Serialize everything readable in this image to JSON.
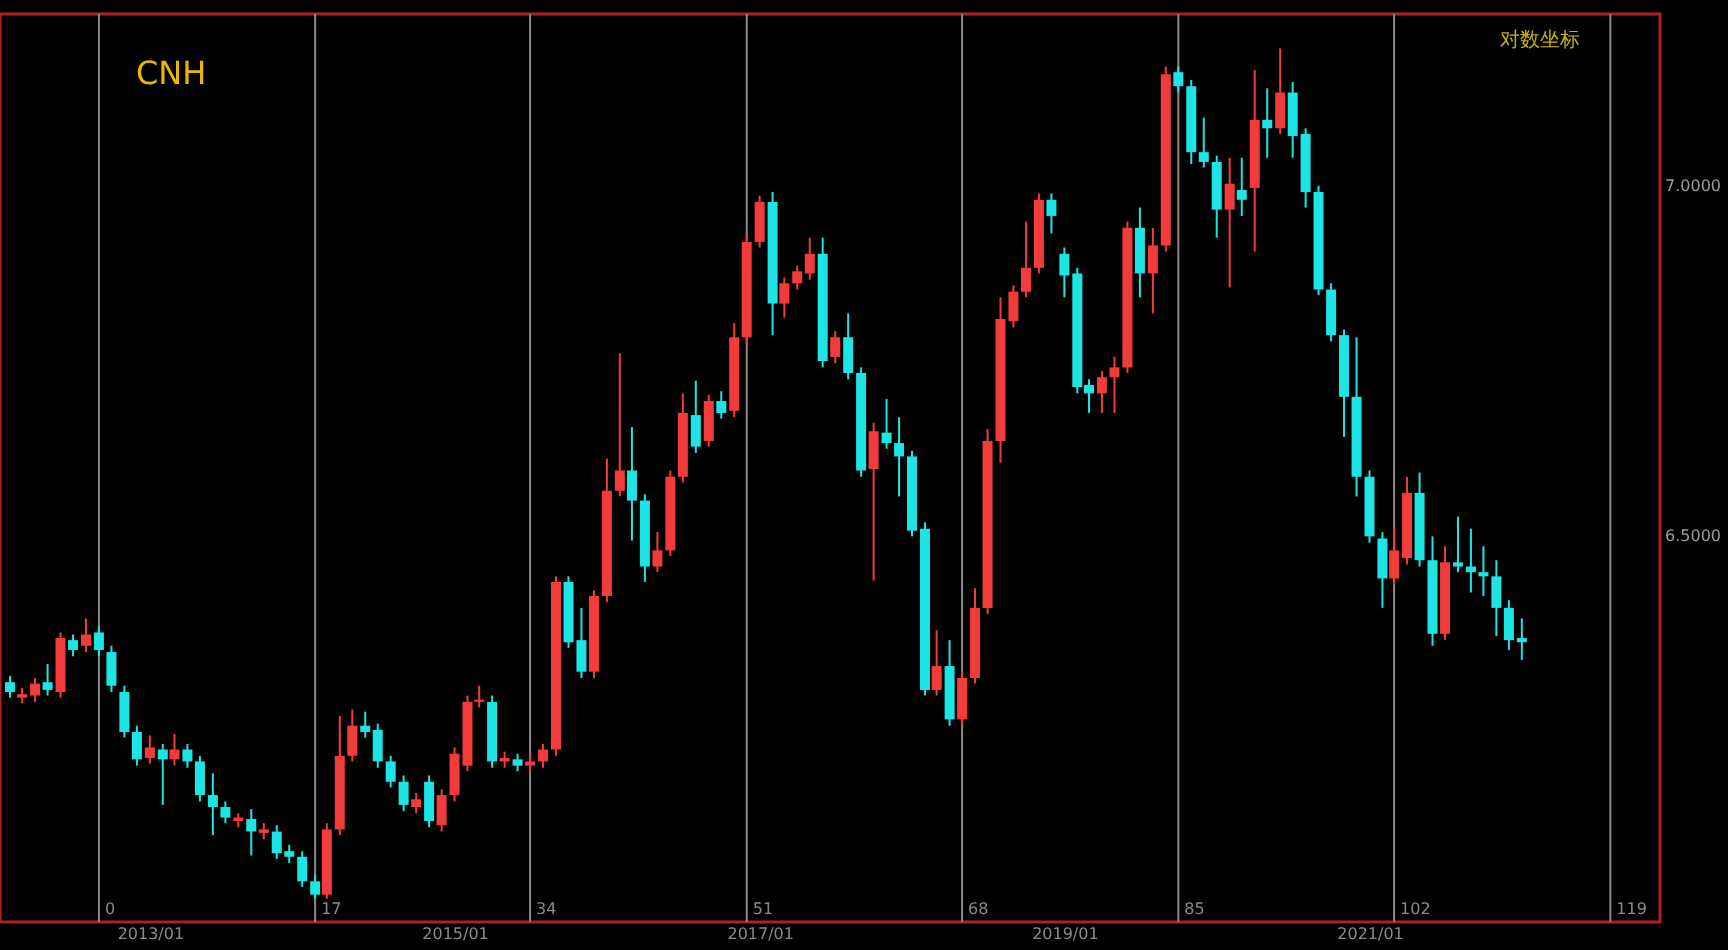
{
  "chart_data": {
    "type": "candlestick",
    "title": "CNH",
    "annotations": [
      "对数坐标"
    ],
    "x": [
      "2012-02",
      "2012-03",
      "2012-04",
      "2012-05",
      "2012-06",
      "2012-07",
      "2012-08",
      "2012-09",
      "2012-10",
      "2012-11",
      "2012-12",
      "2013-01",
      "2013-02",
      "2013-03",
      "2013-04",
      "2013-05",
      "2013-06",
      "2013-07",
      "2013-08",
      "2013-09",
      "2013-10",
      "2013-11",
      "2013-12",
      "2014-01",
      "2014-02",
      "2014-03",
      "2014-04",
      "2014-05",
      "2014-06",
      "2014-07",
      "2014-08",
      "2014-09",
      "2014-10",
      "2014-11",
      "2014-12",
      "2015-01",
      "2015-02",
      "2015-03",
      "2015-04",
      "2015-05",
      "2015-06",
      "2015-07",
      "2015-08",
      "2015-09",
      "2015-10",
      "2015-11",
      "2015-12",
      "2016-01",
      "2016-02",
      "2016-03",
      "2016-04",
      "2016-05",
      "2016-06",
      "2016-07",
      "2016-08",
      "2016-09",
      "2016-10",
      "2016-11",
      "2016-12",
      "2017-01",
      "2017-02",
      "2017-03",
      "2017-04",
      "2017-05",
      "2017-06",
      "2017-07",
      "2017-08",
      "2017-09",
      "2017-10",
      "2017-11",
      "2017-12",
      "2018-01",
      "2018-02",
      "2018-03",
      "2018-04",
      "2018-05",
      "2018-06",
      "2018-07",
      "2018-08",
      "2018-09",
      "2018-10",
      "2018-11",
      "2018-12",
      "2019-01",
      "2019-02",
      "2019-03",
      "2019-04",
      "2019-05",
      "2019-06",
      "2019-07",
      "2019-08",
      "2019-09",
      "2019-10",
      "2019-11",
      "2019-12",
      "2020-01",
      "2020-02",
      "2020-03",
      "2020-04",
      "2020-05",
      "2020-06",
      "2020-07",
      "2020-08",
      "2020-09",
      "2020-10",
      "2020-11",
      "2020-12",
      "2021-01",
      "2021-02",
      "2021-03",
      "2021-04",
      "2021-05",
      "2021-06",
      "2021-07",
      "2021-08",
      "2021-09",
      "2021-10",
      "2021-11",
      "2021-12",
      "2022-01"
    ],
    "ohlc": [
      [
        6.292,
        6.301,
        6.27,
        6.278
      ],
      [
        6.27,
        6.284,
        6.262,
        6.275
      ],
      [
        6.273,
        6.298,
        6.264,
        6.29
      ],
      [
        6.292,
        6.318,
        6.273,
        6.281
      ],
      [
        6.278,
        6.363,
        6.27,
        6.355
      ],
      [
        6.352,
        6.36,
        6.329,
        6.338
      ],
      [
        6.344,
        6.383,
        6.335,
        6.36
      ],
      [
        6.363,
        6.372,
        6.329,
        6.338
      ],
      [
        6.335,
        6.344,
        6.278,
        6.287
      ],
      [
        6.278,
        6.287,
        6.213,
        6.221
      ],
      [
        6.221,
        6.23,
        6.173,
        6.182
      ],
      [
        6.184,
        6.216,
        6.176,
        6.199
      ],
      [
        6.196,
        6.204,
        6.117,
        6.182
      ],
      [
        6.182,
        6.218,
        6.173,
        6.196
      ],
      [
        6.196,
        6.204,
        6.17,
        6.179
      ],
      [
        6.179,
        6.187,
        6.122,
        6.131
      ],
      [
        6.131,
        6.162,
        6.074,
        6.114
      ],
      [
        6.114,
        6.122,
        6.091,
        6.099
      ],
      [
        6.094,
        6.105,
        6.085,
        6.099
      ],
      [
        6.097,
        6.111,
        6.045,
        6.079
      ],
      [
        6.077,
        6.091,
        6.068,
        6.082
      ],
      [
        6.079,
        6.088,
        6.04,
        6.048
      ],
      [
        6.051,
        6.06,
        6.034,
        6.043
      ],
      [
        6.043,
        6.051,
        6.0,
        6.008
      ],
      [
        6.008,
        6.017,
        5.983,
        5.989
      ],
      [
        5.989,
        6.091,
        5.983,
        6.082
      ],
      [
        6.082,
        6.244,
        6.074,
        6.187
      ],
      [
        6.187,
        6.253,
        6.179,
        6.23
      ],
      [
        6.23,
        6.25,
        6.213,
        6.221
      ],
      [
        6.224,
        6.233,
        6.17,
        6.179
      ],
      [
        6.179,
        6.187,
        6.142,
        6.15
      ],
      [
        6.15,
        6.159,
        6.108,
        6.117
      ],
      [
        6.114,
        6.134,
        6.105,
        6.125
      ],
      [
        6.15,
        6.159,
        6.085,
        6.094
      ],
      [
        6.088,
        6.139,
        6.079,
        6.131
      ],
      [
        6.131,
        6.199,
        6.122,
        6.19
      ],
      [
        6.173,
        6.273,
        6.165,
        6.264
      ],
      [
        6.264,
        6.287,
        6.256,
        6.267
      ],
      [
        6.264,
        6.273,
        6.17,
        6.179
      ],
      [
        6.179,
        6.193,
        6.17,
        6.184
      ],
      [
        6.182,
        6.19,
        6.165,
        6.173
      ],
      [
        6.173,
        6.187,
        6.165,
        6.179
      ],
      [
        6.179,
        6.204,
        6.17,
        6.196
      ],
      [
        6.196,
        6.443,
        6.187,
        6.435
      ],
      [
        6.435,
        6.443,
        6.341,
        6.349
      ],
      [
        6.352,
        6.398,
        6.298,
        6.307
      ],
      [
        6.307,
        6.423,
        6.298,
        6.415
      ],
      [
        6.415,
        6.611,
        6.406,
        6.565
      ],
      [
        6.565,
        6.761,
        6.557,
        6.594
      ],
      [
        6.594,
        6.656,
        6.494,
        6.551
      ],
      [
        6.551,
        6.56,
        6.435,
        6.457
      ],
      [
        6.457,
        6.506,
        6.449,
        6.48
      ],
      [
        6.48,
        6.594,
        6.472,
        6.585
      ],
      [
        6.585,
        6.704,
        6.577,
        6.676
      ],
      [
        6.673,
        6.722,
        6.619,
        6.628
      ],
      [
        6.636,
        6.702,
        6.628,
        6.693
      ],
      [
        6.693,
        6.707,
        6.668,
        6.676
      ],
      [
        6.679,
        6.804,
        6.67,
        6.784
      ],
      [
        6.784,
        6.929,
        6.776,
        6.92
      ],
      [
        6.92,
        6.986,
        6.912,
        6.977
      ],
      [
        6.977,
        6.991,
        6.787,
        6.832
      ],
      [
        6.832,
        6.869,
        6.812,
        6.861
      ],
      [
        6.861,
        6.886,
        6.852,
        6.878
      ],
      [
        6.875,
        6.926,
        6.866,
        6.903
      ],
      [
        6.903,
        6.926,
        6.741,
        6.75
      ],
      [
        6.756,
        6.793,
        6.747,
        6.784
      ],
      [
        6.784,
        6.818,
        6.724,
        6.733
      ],
      [
        6.733,
        6.741,
        6.585,
        6.594
      ],
      [
        6.596,
        6.662,
        6.437,
        6.65
      ],
      [
        6.648,
        6.696,
        6.625,
        6.633
      ],
      [
        6.633,
        6.67,
        6.557,
        6.614
      ],
      [
        6.614,
        6.622,
        6.5,
        6.508
      ],
      [
        6.511,
        6.52,
        6.273,
        6.281
      ],
      [
        6.281,
        6.366,
        6.273,
        6.315
      ],
      [
        6.315,
        6.352,
        6.23,
        6.239
      ],
      [
        6.239,
        6.307,
        6.23,
        6.298
      ],
      [
        6.298,
        6.426,
        6.29,
        6.398
      ],
      [
        6.398,
        6.653,
        6.389,
        6.636
      ],
      [
        6.636,
        6.841,
        6.605,
        6.81
      ],
      [
        6.807,
        6.858,
        6.798,
        6.849
      ],
      [
        6.849,
        6.949,
        6.841,
        6.883
      ],
      [
        6.883,
        6.989,
        6.875,
        6.98
      ],
      [
        6.98,
        6.989,
        6.932,
        6.957
      ],
      [
        6.903,
        6.912,
        6.841,
        6.872
      ],
      [
        6.875,
        6.883,
        6.704,
        6.713
      ],
      [
        6.716,
        6.724,
        6.676,
        6.704
      ],
      [
        6.704,
        6.736,
        6.676,
        6.727
      ],
      [
        6.727,
        6.756,
        6.676,
        6.741
      ],
      [
        6.741,
        6.949,
        6.733,
        6.94
      ],
      [
        6.94,
        6.969,
        6.841,
        6.875
      ],
      [
        6.875,
        6.94,
        6.818,
        6.915
      ],
      [
        6.915,
        7.17,
        6.906,
        7.159
      ],
      [
        7.162,
        7.17,
        7.133,
        7.142
      ],
      [
        7.142,
        7.151,
        7.031,
        7.048
      ],
      [
        7.048,
        7.097,
        7.026,
        7.034
      ],
      [
        7.034,
        7.043,
        6.926,
        6.966
      ],
      [
        6.966,
        7.04,
        6.855,
        7.003
      ],
      [
        6.994,
        7.04,
        6.957,
        6.98
      ],
      [
        6.997,
        7.165,
        6.906,
        7.094
      ],
      [
        7.094,
        7.139,
        7.04,
        7.082
      ],
      [
        7.082,
        7.196,
        7.074,
        7.133
      ],
      [
        7.133,
        7.148,
        7.04,
        7.071
      ],
      [
        7.074,
        7.082,
        6.969,
        6.991
      ],
      [
        6.991,
        7.0,
        6.844,
        6.852
      ],
      [
        6.852,
        6.861,
        6.778,
        6.787
      ],
      [
        6.787,
        6.795,
        6.642,
        6.699
      ],
      [
        6.699,
        6.784,
        6.557,
        6.585
      ],
      [
        6.585,
        6.594,
        6.491,
        6.5
      ],
      [
        6.497,
        6.506,
        6.398,
        6.44
      ],
      [
        6.44,
        6.514,
        6.432,
        6.48
      ],
      [
        6.469,
        6.585,
        6.46,
        6.562
      ],
      [
        6.562,
        6.591,
        6.457,
        6.466
      ],
      [
        6.466,
        6.5,
        6.344,
        6.361
      ],
      [
        6.361,
        6.486,
        6.352,
        6.463
      ],
      [
        6.463,
        6.528,
        6.449,
        6.457
      ],
      [
        6.457,
        6.511,
        6.42,
        6.449
      ],
      [
        6.449,
        6.486,
        6.415,
        6.443
      ],
      [
        6.443,
        6.466,
        6.358,
        6.398
      ],
      [
        6.398,
        6.409,
        6.338,
        6.352
      ],
      [
        6.355,
        6.383,
        6.324,
        6.349
      ]
    ],
    "colors": [
      "#1de5e5",
      "#f23c3c",
      "#f23c3c",
      "#1de5e5",
      "#f23c3c",
      "#1de5e5",
      "#f23c3c",
      "#1de5e5",
      "#1de5e5",
      "#1de5e5",
      "#1de5e5",
      "#f23c3c",
      "#1de5e5",
      "#f23c3c",
      "#1de5e5",
      "#1de5e5",
      "#1de5e5",
      "#1de5e5",
      "#f23c3c",
      "#1de5e5",
      "#f23c3c",
      "#1de5e5",
      "#1de5e5",
      "#1de5e5",
      "#1de5e5",
      "#f23c3c",
      "#f23c3c",
      "#f23c3c",
      "#1de5e5",
      "#1de5e5",
      "#1de5e5",
      "#1de5e5",
      "#f23c3c",
      "#1de5e5",
      "#f23c3c",
      "#f23c3c",
      "#f23c3c",
      "#f23c3c",
      "#1de5e5",
      "#f23c3c",
      "#1de5e5",
      "#f23c3c",
      "#f23c3c",
      "#f23c3c",
      "#1de5e5",
      "#1de5e5",
      "#f23c3c",
      "#f23c3c",
      "#f23c3c",
      "#1de5e5",
      "#1de5e5",
      "#f23c3c",
      "#f23c3c",
      "#f23c3c",
      "#1de5e5",
      "#f23c3c",
      "#1de5e5",
      "#f23c3c",
      "#f23c3c",
      "#f23c3c",
      "#1de5e5",
      "#f23c3c",
      "#f23c3c",
      "#f23c3c",
      "#1de5e5",
      "#f23c3c",
      "#1de5e5",
      "#1de5e5",
      "#f23c3c",
      "#1de5e5",
      "#1de5e5",
      "#1de5e5",
      "#1de5e5",
      "#f23c3c",
      "#1de5e5",
      "#f23c3c",
      "#f23c3c",
      "#f23c3c",
      "#f23c3c",
      "#f23c3c",
      "#f23c3c",
      "#f23c3c",
      "#1de5e5",
      "#1de5e5",
      "#1de5e5",
      "#1de5e5",
      "#f23c3c",
      "#f23c3c",
      "#f23c3c",
      "#1de5e5",
      "#f23c3c",
      "#f23c3c",
      "#1de5e5",
      "#1de5e5",
      "#1de5e5",
      "#1de5e5",
      "#f23c3c",
      "#1de5e5",
      "#f23c3c",
      "#1de5e5",
      "#f23c3c",
      "#1de5e5",
      "#1de5e5",
      "#1de5e5",
      "#1de5e5",
      "#1de5e5",
      "#1de5e5",
      "#1de5e5",
      "#1de5e5",
      "#f23c3c",
      "#f23c3c",
      "#1de5e5",
      "#1de5e5",
      "#f23c3c",
      "#1de5e5",
      "#1de5e5",
      "#1de5e5",
      "#1de5e5",
      "#1de5e5",
      "#1de5e5"
    ],
    "xlim": [
      "2012-01-08",
      "2022-11-28"
    ],
    "xticks": [
      {
        "value": "2013-01",
        "label": "2013/01"
      },
      {
        "value": "2015-01",
        "label": "2015/01"
      },
      {
        "value": "2017-01",
        "label": "2017/01"
      },
      {
        "value": "2019-01",
        "label": "2019/01"
      },
      {
        "value": "2021-01",
        "label": "2021/01"
      }
    ],
    "ylim": [
      5.95,
      7.245
    ],
    "yticks": [
      {
        "value": 7,
        "label": "7.0000"
      },
      {
        "value": 6.5,
        "label": "6.5000"
      }
    ],
    "ref_lines": [
      {
        "axis": "x",
        "value": "2012-09",
        "label": "0",
        "color": "#8a8a8a"
      },
      {
        "axis": "x",
        "value": "2014-02",
        "label": "17",
        "color": "#8a8a8a"
      },
      {
        "axis": "x",
        "value": "2015-07",
        "label": "34",
        "color": "#8a8a8a"
      },
      {
        "axis": "x",
        "value": "2016-12",
        "label": "51",
        "color": "#8a8a8a"
      },
      {
        "axis": "x",
        "value": "2018-05",
        "label": "68",
        "color": "#8a8a8a"
      },
      {
        "axis": "x",
        "value": "2019-10",
        "label": "85",
        "color": "#8a8a8a"
      },
      {
        "axis": "x",
        "value": "2021-03",
        "label": "102",
        "color": "#8a8a8a"
      },
      {
        "axis": "x",
        "value": "2022-08",
        "label": "119",
        "color": "#8a8a8a"
      }
    ]
  }
}
